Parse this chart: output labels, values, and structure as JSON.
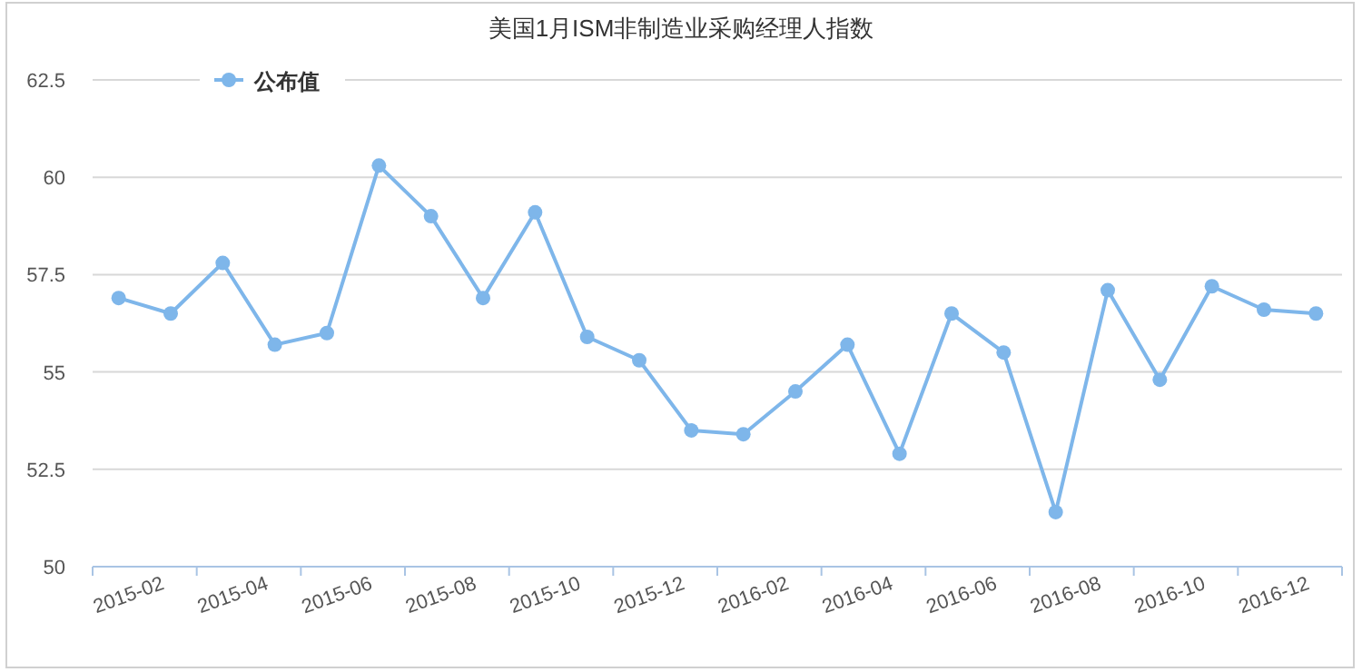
{
  "chart_data": {
    "type": "line",
    "title": "美国1月ISM非制造业采购经理人指数",
    "categories": [
      null,
      "2015-02",
      null,
      "2015-04",
      null,
      "2015-06",
      null,
      "2015-08",
      null,
      "2015-10",
      null,
      "2015-12",
      null,
      "2016-02",
      null,
      "2016-04",
      null,
      "2016-06",
      null,
      "2016-08",
      null,
      "2016-10",
      null,
      "2016-12"
    ],
    "series": [
      {
        "name": "公布值",
        "color": "#7eb6ea",
        "values": [
          56.9,
          56.5,
          57.8,
          55.7,
          56.0,
          60.3,
          59.0,
          56.9,
          59.1,
          55.9,
          55.3,
          53.5,
          53.4,
          54.5,
          55.7,
          52.9,
          56.5,
          55.5,
          51.4,
          57.1,
          54.8,
          57.2,
          56.6,
          56.5
        ]
      }
    ],
    "ylim": [
      50,
      62.5
    ],
    "yticks": [
      50,
      52.5,
      55,
      57.5,
      60,
      62.5
    ],
    "grid": "y",
    "legend": "top left",
    "marker": "circle",
    "line_style": "solid"
  }
}
